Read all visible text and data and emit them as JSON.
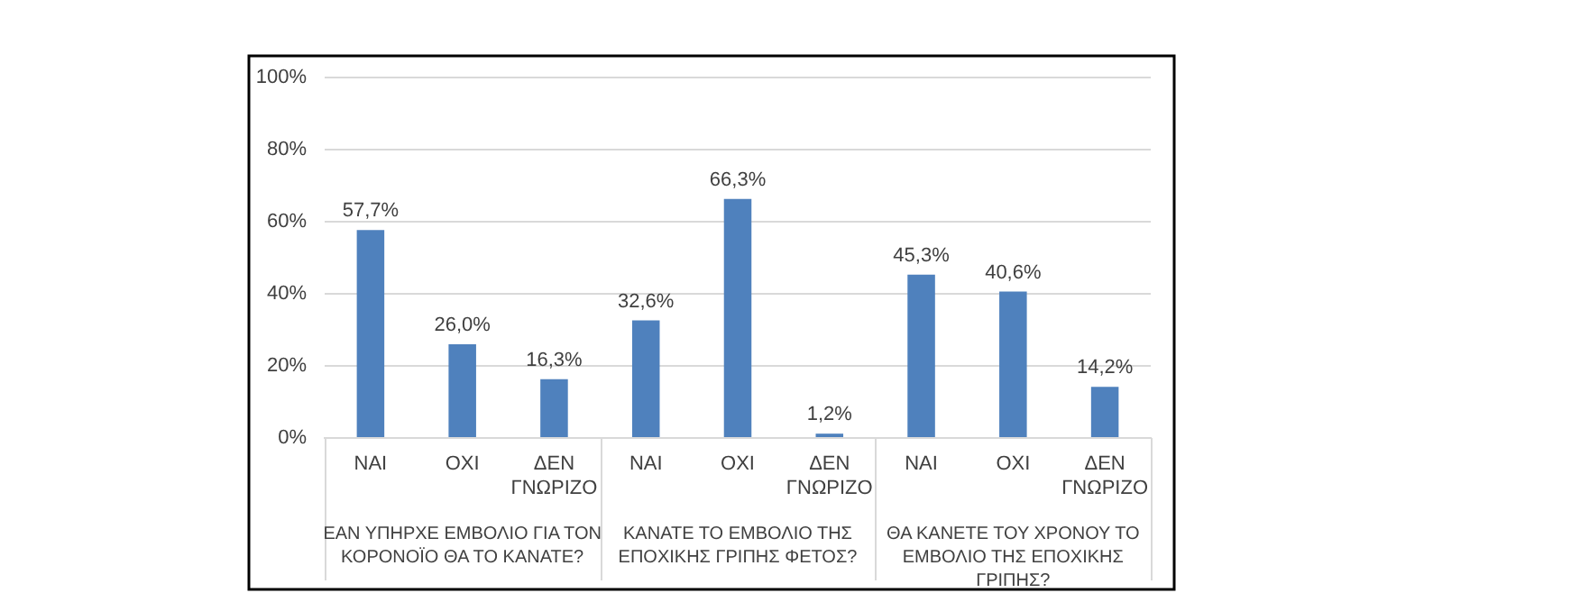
{
  "chart_data": {
    "type": "bar",
    "categories": [
      "ΝΑΙ",
      "ΟΧΙ",
      "ΔΕΝ ΓΝΩΡΙΖΟ",
      "ΝΑΙ",
      "ΟΧΙ",
      "ΔΕΝ ΓΝΩΡΙΖΟ",
      "ΝΑΙ",
      "ΟΧΙ",
      "ΔΕΝ ΓΝΩΡΙΖΟ"
    ],
    "values": [
      57.7,
      26.0,
      16.3,
      32.6,
      66.3,
      1.2,
      45.3,
      40.6,
      14.2
    ],
    "value_labels": [
      "57,7%",
      "26,0%",
      "16,3%",
      "32,6%",
      "66,3%",
      "1,2%",
      "45,3%",
      "40,6%",
      "14,2%"
    ],
    "color": "#4f81bd",
    "ylim": [
      0,
      100
    ],
    "yticks": [
      {
        "value": 0,
        "label": "0%"
      },
      {
        "value": 20,
        "label": "20%"
      },
      {
        "value": 40,
        "label": "40%"
      },
      {
        "value": 60,
        "label": "60%"
      },
      {
        "value": 80,
        "label": "80%"
      },
      {
        "value": 100,
        "label": "100%"
      }
    ],
    "grid": "y",
    "legend": false,
    "annotations": [
      "ΕΑΝ ΥΠΗΡΧΕ ΕΜΒΟΛΙΟ ΓΙΑ ΤΟΝ ΚΟΡΟΝΟΪΟ ΘΑ ΤΟ ΚΑΝΑΤΕ?",
      "ΚΑΝΑΤΕ ΤΟ ΕΜΒΟΛΙΟ ΤΗΣ ΕΠΟΧΙΚΗΣ ΓΡΙΠΗΣ ΦΕΤΟΣ?",
      "ΘΑ ΚΑΝΕΤΕ ΤΟΥ ΧΡΟΝΟΥ ΤΟ ΕΜΒΟΛΙΟ ΤΗΣ ΕΠΟΧΙΚΗΣ ΓΡΙΠΗΣ?"
    ]
  }
}
